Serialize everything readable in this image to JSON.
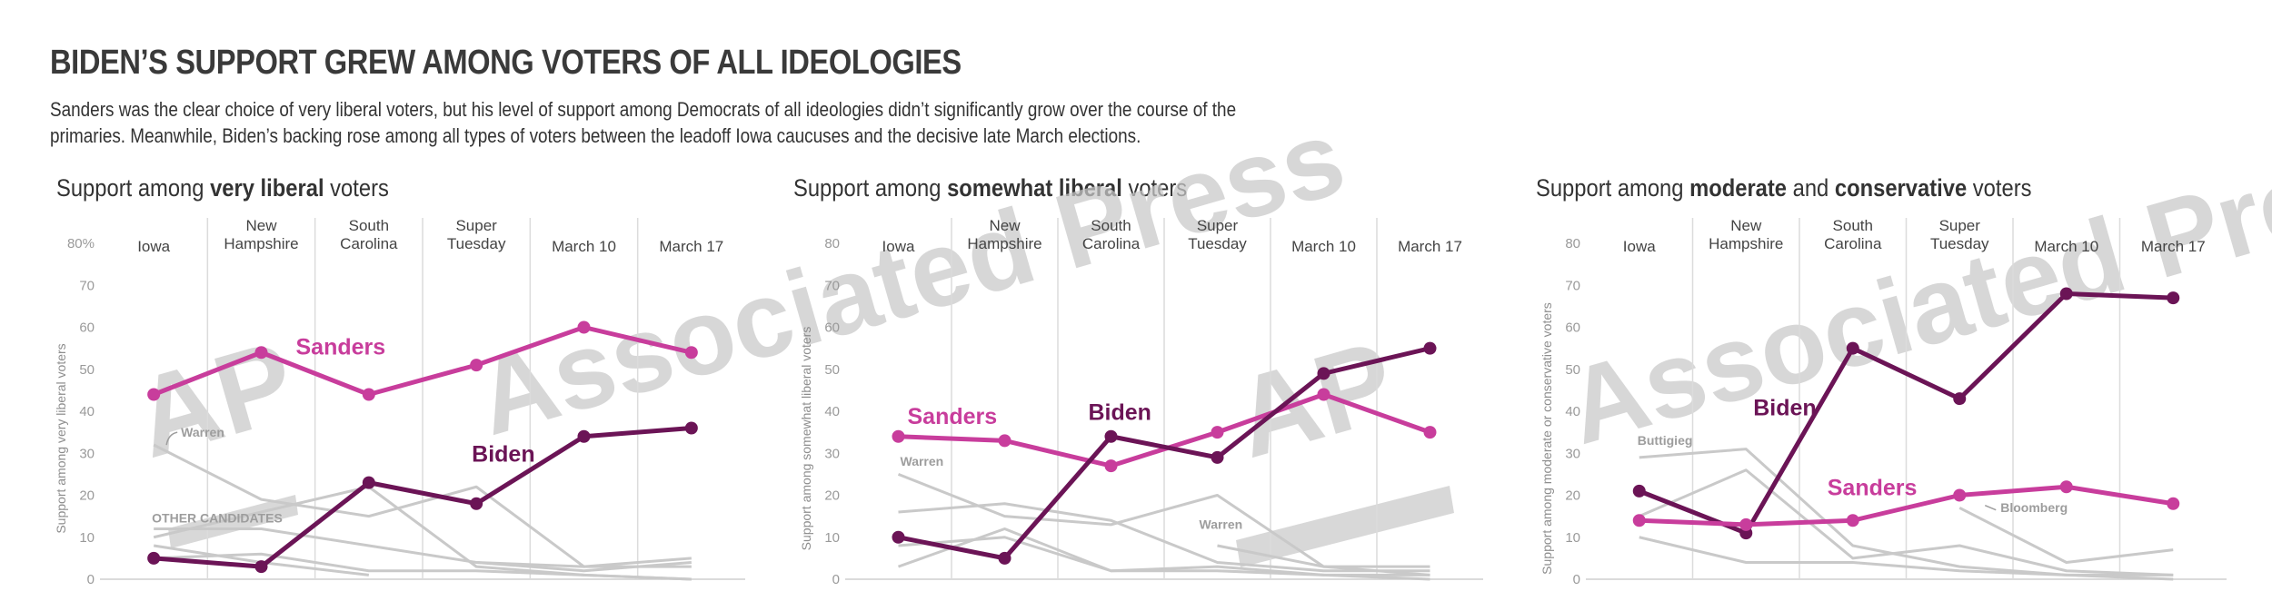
{
  "title": "BIDEN’S SUPPORT GREW AMONG VOTERS OF ALL IDEOLOGIES",
  "description": "Sanders was the clear choice of very liberal voters, but his level of support among Democrats of all ideologies didn’t significantly grow over the course of the primaries. Meanwhile, Biden’s backing rose among all types of voters between the leadoff Iowa caucuses and the decisive late March elections.",
  "watermark": "Associated Press",
  "watermark_logo": "AP",
  "colors": {
    "biden": "#6b1456",
    "sanders": "#c83d9c",
    "other": "#c9c9c9",
    "grid": "#dcdcdc"
  },
  "chart_data": [
    {
      "type": "line",
      "title_pre": "Support among ",
      "title_bold": "very liberal",
      "title_post": " voters",
      "ylabel": "Support among very liberal voters",
      "categories": [
        "Iowa",
        "New Hampshire",
        "South Carolina",
        "Super Tuesday",
        "March 10",
        "March 17"
      ],
      "yticks": [
        "0",
        "10",
        "20",
        "30",
        "40",
        "50",
        "60",
        "70",
        "80%"
      ],
      "ylim": [
        0,
        80
      ],
      "series": [
        {
          "name": "Sanders",
          "color": "#c83d9c",
          "values": [
            44,
            54,
            44,
            51,
            60,
            54
          ]
        },
        {
          "name": "Biden",
          "color": "#6b1456",
          "values": [
            5,
            3,
            23,
            18,
            34,
            36
          ]
        }
      ],
      "other_series": [
        {
          "name": "Warren",
          "values": [
            32,
            19,
            15,
            22,
            3,
            5
          ]
        },
        {
          "name": "",
          "values": [
            12,
            12,
            8,
            4,
            2,
            4
          ]
        },
        {
          "name": "",
          "values": [
            10,
            16,
            22,
            3,
            1,
            0
          ]
        },
        {
          "name": "",
          "values": [
            5,
            6,
            2,
            2,
            1,
            0
          ]
        },
        {
          "name": "",
          "values": [
            8,
            4,
            1,
            null,
            null,
            null
          ]
        },
        {
          "name": "",
          "values": [
            null,
            null,
            null,
            4,
            3,
            3
          ]
        }
      ],
      "annotations": [
        "Warren",
        "OTHER CANDIDATES"
      ],
      "grid": true
    },
    {
      "type": "line",
      "title_pre": "Support among ",
      "title_bold": "somewhat liberal",
      "title_post": " voters",
      "ylabel": "Support among somewhat liberal voters",
      "categories": [
        "Iowa",
        "New Hampshire",
        "South Carolina",
        "Super Tuesday",
        "March 10",
        "March 17"
      ],
      "yticks": [
        "0",
        "10",
        "20",
        "30",
        "40",
        "50",
        "60",
        "70",
        "80"
      ],
      "ylim": [
        0,
        80
      ],
      "series": [
        {
          "name": "Sanders",
          "color": "#c83d9c",
          "values": [
            34,
            33,
            27,
            35,
            44,
            35
          ]
        },
        {
          "name": "Biden",
          "color": "#6b1456",
          "values": [
            10,
            5,
            34,
            29,
            49,
            55
          ]
        }
      ],
      "other_series": [
        {
          "name": "Warren",
          "values": [
            25,
            15,
            13,
            20,
            3,
            3
          ]
        },
        {
          "name": "",
          "values": [
            16,
            18,
            14,
            4,
            2,
            2
          ]
        },
        {
          "name": "",
          "values": [
            8,
            10,
            2,
            3,
            1,
            1
          ]
        },
        {
          "name": "",
          "values": [
            3,
            12,
            2,
            2,
            1,
            0
          ]
        },
        {
          "name": "",
          "values": [
            null,
            null,
            null,
            8,
            3,
            1
          ]
        }
      ],
      "annotations": [
        "Warren",
        "Warren"
      ],
      "grid": true
    },
    {
      "type": "line",
      "title_pre": "Support among ",
      "title_bold": "moderate",
      "title_mid": " and ",
      "title_bold2": "conservative",
      "title_post": " voters",
      "ylabel": "Support among moderate or conservative voters",
      "categories": [
        "Iowa",
        "New Hampshire",
        "South Carolina",
        "Super Tuesday",
        "March 10",
        "March 17"
      ],
      "yticks": [
        "0",
        "10",
        "20",
        "30",
        "40",
        "50",
        "60",
        "70",
        "80"
      ],
      "ylim": [
        0,
        80
      ],
      "series": [
        {
          "name": "Biden",
          "color": "#6b1456",
          "values": [
            21,
            11,
            55,
            43,
            68,
            67
          ]
        },
        {
          "name": "Sanders",
          "color": "#c83d9c",
          "values": [
            14,
            13,
            14,
            20,
            22,
            18
          ]
        }
      ],
      "other_series": [
        {
          "name": "Buttigieg",
          "values": [
            29,
            31,
            8,
            3,
            1,
            1
          ]
        },
        {
          "name": "",
          "values": [
            15,
            26,
            5,
            8,
            2,
            1
          ]
        },
        {
          "name": "",
          "values": [
            10,
            4,
            4,
            2,
            1,
            0
          ]
        },
        {
          "name": "Bloomberg",
          "values": [
            null,
            null,
            null,
            17,
            4,
            7
          ]
        }
      ],
      "annotations": [
        "Buttigieg",
        "Bloomberg"
      ],
      "grid": true
    }
  ]
}
